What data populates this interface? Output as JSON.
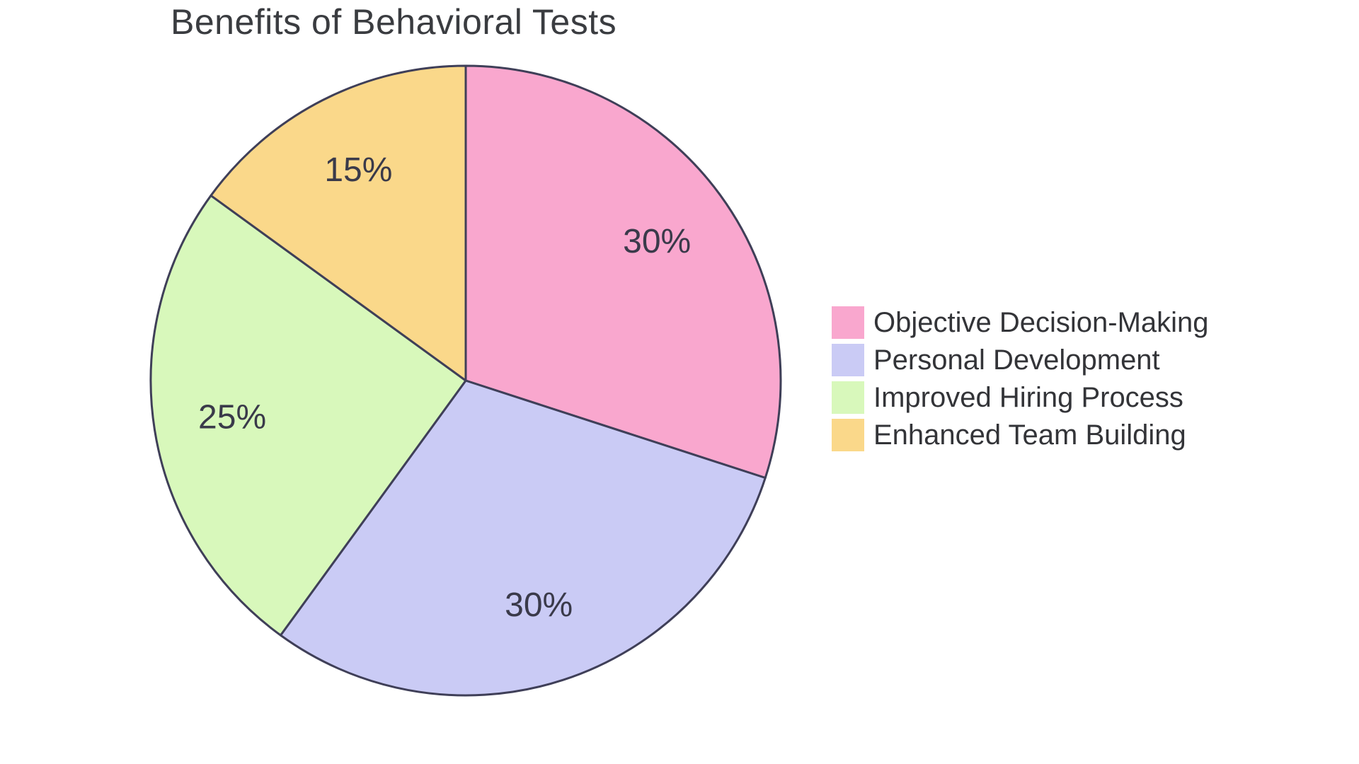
{
  "chart_data": {
    "type": "pie",
    "title": "Benefits of Behavioral Tests",
    "categories": [
      "Objective Decision-Making",
      "Personal Development",
      "Improved Hiring Process",
      "Enhanced Team Building"
    ],
    "values": [
      30,
      30,
      25,
      15
    ],
    "percent_labels": [
      "30%",
      "30%",
      "25%",
      "15%"
    ],
    "colors": [
      "#F9A7CE",
      "#CACBF5",
      "#D8F8BB",
      "#FAD88A"
    ],
    "start_angle": "12-oclock",
    "direction": "clockwise",
    "legend_position": "center-right",
    "stroke_color": "#3F3F58",
    "label_text_color": "#3A3A4A",
    "title_color": "#3A3C40",
    "legend_text_color": "#333438",
    "background_color": "#FFFFFF"
  }
}
